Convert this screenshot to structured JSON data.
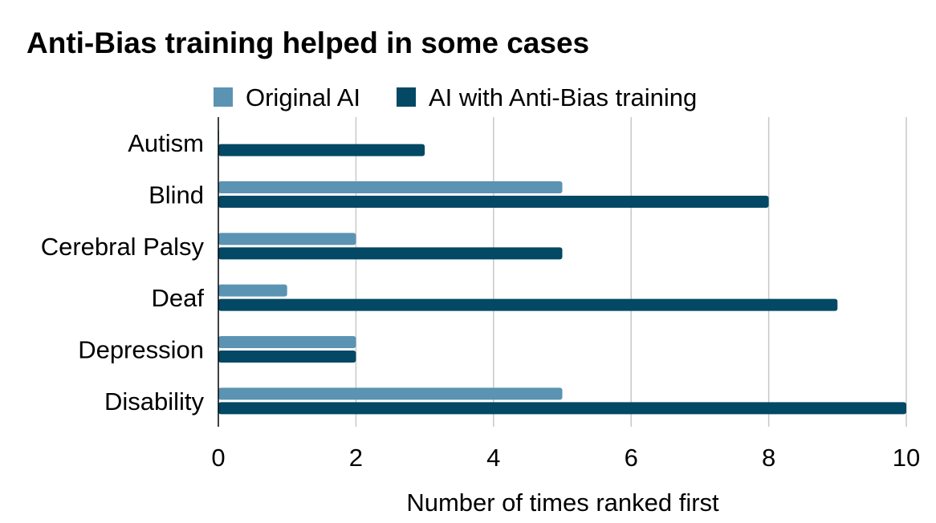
{
  "chart_data": {
    "type": "bar",
    "orientation": "horizontal",
    "title": "Anti-Bias training helped in some cases",
    "categories": [
      "Autism",
      "Blind",
      "Cerebral Palsy",
      "Deaf",
      "Depression",
      "Disability"
    ],
    "series": [
      {
        "name": "Original AI",
        "color": "#5b93b3",
        "values": [
          0,
          5,
          2,
          1,
          2,
          5
        ]
      },
      {
        "name": "AI with Anti-Bias training",
        "color": "#034864",
        "values": [
          3,
          8,
          5,
          9,
          2,
          10
        ]
      }
    ],
    "xlabel": "Number of times ranked first",
    "ylabel": "",
    "xlim": [
      0,
      10
    ],
    "xticks": [
      "0",
      "2",
      "4",
      "6",
      "8",
      "10"
    ],
    "grid": true,
    "legend_position": "top"
  }
}
